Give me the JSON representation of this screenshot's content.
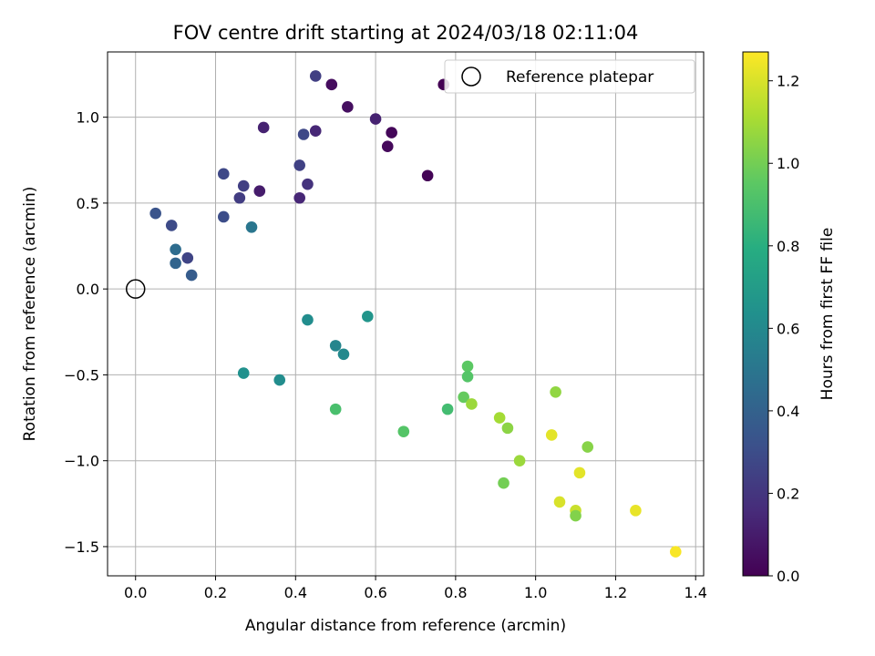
{
  "chart_data": {
    "type": "scatter",
    "title": "FOV centre drift starting at 2024/03/18 02:11:04",
    "xlabel": "Angular distance from reference (arcmin)",
    "ylabel": "Rotation from reference (arcmin)",
    "xlim": [
      -0.07,
      1.42
    ],
    "ylim": [
      -1.67,
      1.38
    ],
    "xticks": [
      0.0,
      0.2,
      0.4,
      0.6,
      0.8,
      1.0,
      1.2,
      1.4
    ],
    "xtick_labels": [
      "0.0",
      "0.2",
      "0.4",
      "0.6",
      "0.8",
      "1.0",
      "1.2",
      "1.4"
    ],
    "yticks": [
      -1.5,
      -1.0,
      -0.5,
      0.0,
      0.5,
      1.0
    ],
    "ytick_labels": [
      "−1.5",
      "−1.0",
      "−0.5",
      "0.0",
      "0.5",
      "1.0"
    ],
    "grid": true,
    "legend": {
      "placement": "top-right",
      "entries": [
        "Reference platepar"
      ]
    },
    "reference_point": {
      "x": 0.0,
      "y": 0.0
    },
    "colorbar": {
      "label": "Hours from first FF file",
      "colormap": "viridis",
      "range": [
        0.0,
        1.27
      ],
      "ticks": [
        0.0,
        0.2,
        0.4,
        0.6,
        0.8,
        1.0,
        1.2
      ],
      "tick_labels": [
        "0.0",
        "0.2",
        "0.4",
        "0.6",
        "0.8",
        "1.0",
        "1.2"
      ]
    },
    "points": [
      {
        "x": 0.77,
        "y": 1.19,
        "c": 0.0
      },
      {
        "x": 0.49,
        "y": 1.19,
        "c": 0.04
      },
      {
        "x": 0.53,
        "y": 1.06,
        "c": 0.05
      },
      {
        "x": 0.64,
        "y": 0.91,
        "c": 0.02
      },
      {
        "x": 0.63,
        "y": 0.83,
        "c": 0.03
      },
      {
        "x": 0.73,
        "y": 0.66,
        "c": 0.01
      },
      {
        "x": 0.6,
        "y": 0.99,
        "c": 0.12
      },
      {
        "x": 0.45,
        "y": 0.92,
        "c": 0.14
      },
      {
        "x": 0.32,
        "y": 0.94,
        "c": 0.12
      },
      {
        "x": 0.31,
        "y": 0.57,
        "c": 0.1
      },
      {
        "x": 0.41,
        "y": 0.53,
        "c": 0.14
      },
      {
        "x": 0.43,
        "y": 0.61,
        "c": 0.19
      },
      {
        "x": 0.41,
        "y": 0.72,
        "c": 0.25
      },
      {
        "x": 0.42,
        "y": 0.9,
        "c": 0.28
      },
      {
        "x": 0.45,
        "y": 1.24,
        "c": 0.24
      },
      {
        "x": 0.22,
        "y": 0.67,
        "c": 0.28
      },
      {
        "x": 0.27,
        "y": 0.6,
        "c": 0.24
      },
      {
        "x": 0.26,
        "y": 0.53,
        "c": 0.23
      },
      {
        "x": 0.22,
        "y": 0.42,
        "c": 0.3
      },
      {
        "x": 0.29,
        "y": 0.36,
        "c": 0.5
      },
      {
        "x": 0.05,
        "y": 0.44,
        "c": 0.33
      },
      {
        "x": 0.09,
        "y": 0.37,
        "c": 0.29
      },
      {
        "x": 0.1,
        "y": 0.23,
        "c": 0.45
      },
      {
        "x": 0.13,
        "y": 0.18,
        "c": 0.26
      },
      {
        "x": 0.1,
        "y": 0.15,
        "c": 0.41
      },
      {
        "x": 0.14,
        "y": 0.08,
        "c": 0.37
      },
      {
        "x": 0.43,
        "y": -0.18,
        "c": 0.62
      },
      {
        "x": 0.58,
        "y": -0.16,
        "c": 0.66
      },
      {
        "x": 0.5,
        "y": -0.33,
        "c": 0.58
      },
      {
        "x": 0.52,
        "y": -0.38,
        "c": 0.6
      },
      {
        "x": 0.27,
        "y": -0.49,
        "c": 0.64
      },
      {
        "x": 0.36,
        "y": -0.53,
        "c": 0.62
      },
      {
        "x": 0.5,
        "y": -0.7,
        "c": 0.9
      },
      {
        "x": 0.67,
        "y": -0.83,
        "c": 0.93
      },
      {
        "x": 0.78,
        "y": -0.7,
        "c": 0.88
      },
      {
        "x": 0.83,
        "y": -0.45,
        "c": 0.95
      },
      {
        "x": 0.83,
        "y": -0.51,
        "c": 0.93
      },
      {
        "x": 0.82,
        "y": -0.63,
        "c": 0.97
      },
      {
        "x": 0.84,
        "y": -0.67,
        "c": 1.08
      },
      {
        "x": 0.91,
        "y": -0.75,
        "c": 1.1
      },
      {
        "x": 0.93,
        "y": -0.81,
        "c": 1.05
      },
      {
        "x": 0.96,
        "y": -1.0,
        "c": 1.08
      },
      {
        "x": 0.92,
        "y": -1.13,
        "c": 1.0
      },
      {
        "x": 1.05,
        "y": -0.6,
        "c": 1.06
      },
      {
        "x": 1.04,
        "y": -0.85,
        "c": 1.22
      },
      {
        "x": 1.13,
        "y": -0.92,
        "c": 1.04
      },
      {
        "x": 1.11,
        "y": -1.07,
        "c": 1.22
      },
      {
        "x": 1.06,
        "y": -1.24,
        "c": 1.2
      },
      {
        "x": 1.1,
        "y": -1.29,
        "c": 1.17
      },
      {
        "x": 1.1,
        "y": -1.32,
        "c": 1.03
      },
      {
        "x": 1.25,
        "y": -1.29,
        "c": 1.23
      },
      {
        "x": 1.35,
        "y": -1.53,
        "c": 1.26
      }
    ]
  }
}
